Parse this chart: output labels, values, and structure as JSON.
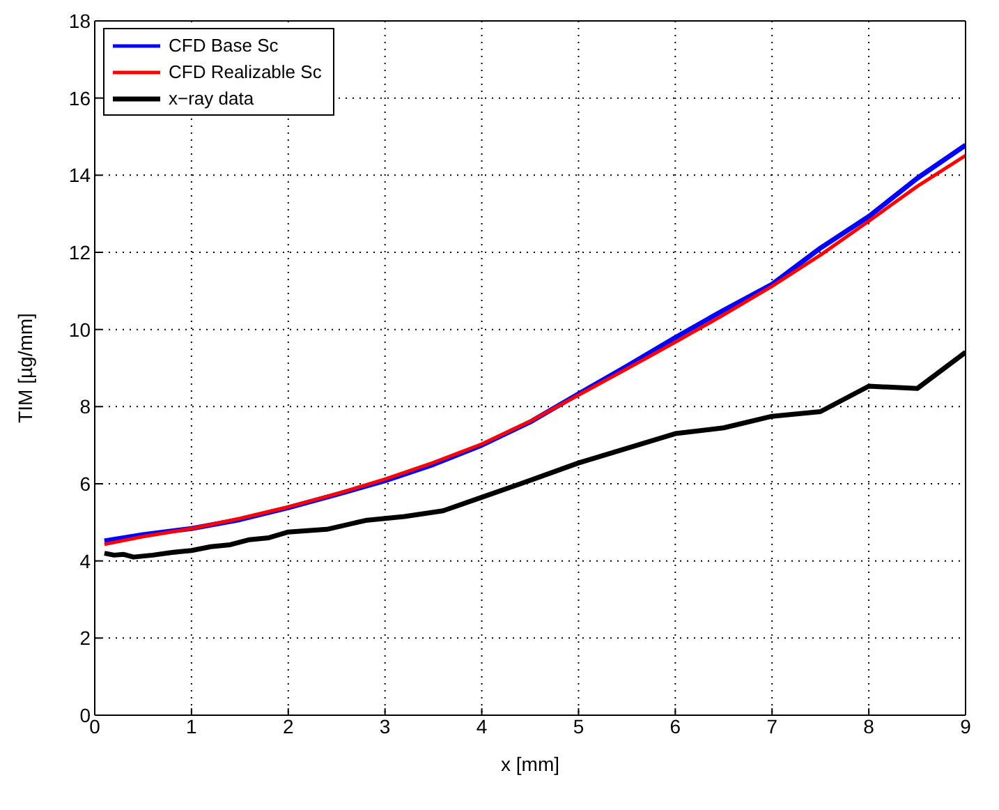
{
  "chart_data": {
    "type": "line",
    "xlabel": "x [mm]",
    "ylabel": "TIM [µg/mm]",
    "xlim": [
      0,
      9
    ],
    "xticks": [
      0,
      1,
      2,
      3,
      4,
      5,
      6,
      7,
      8,
      9
    ],
    "ylim": [
      0,
      18
    ],
    "yticks": [
      0,
      2,
      4,
      6,
      8,
      10,
      12,
      14,
      16,
      18
    ],
    "grid": true,
    "legend": "top left",
    "line_style": "solid",
    "marker": "none",
    "series": [
      {
        "name": "CFD Base Sc",
        "color": "#0000ff",
        "x": [
          0.1,
          0.5,
          1,
          1.5,
          2,
          2.5,
          3,
          3.5,
          4,
          4.5,
          5,
          5.5,
          6,
          6.5,
          7,
          7.5,
          8,
          8.5,
          9
        ],
        "values": [
          4.52,
          4.68,
          4.84,
          5.07,
          5.38,
          5.72,
          6.08,
          6.5,
          7.0,
          7.6,
          8.33,
          9.05,
          9.79,
          10.5,
          11.17,
          12.11,
          12.93,
          13.92,
          14.78
        ]
      },
      {
        "name": "CFD Realizable Sc",
        "color": "#ff0000",
        "x": [
          0.1,
          0.5,
          1,
          1.5,
          2,
          2.5,
          3,
          3.5,
          4,
          4.5,
          5,
          5.5,
          6,
          6.5,
          7,
          7.5,
          8,
          8.5,
          9
        ],
        "values": [
          4.43,
          4.63,
          4.84,
          5.1,
          5.4,
          5.74,
          6.12,
          6.55,
          7.03,
          7.62,
          8.3,
          8.98,
          9.67,
          10.38,
          11.12,
          11.93,
          12.81,
          13.71,
          14.51
        ]
      },
      {
        "name": "x−ray data",
        "color": "#000000",
        "x": [
          0.1,
          0.2,
          0.3,
          0.4,
          0.6,
          0.8,
          1,
          1.2,
          1.4,
          1.6,
          1.8,
          2,
          2.4,
          2.8,
          3.2,
          3.6,
          4,
          4.4,
          5,
          6,
          6.5,
          7,
          7.5,
          8,
          8.5,
          9
        ],
        "values": [
          4.2,
          4.15,
          4.17,
          4.1,
          4.15,
          4.22,
          4.27,
          4.37,
          4.42,
          4.55,
          4.6,
          4.75,
          4.82,
          5.05,
          5.15,
          5.3,
          5.65,
          6.0,
          6.54,
          7.3,
          7.45,
          7.75,
          7.87,
          8.53,
          8.47,
          9.41
        ]
      }
    ]
  }
}
